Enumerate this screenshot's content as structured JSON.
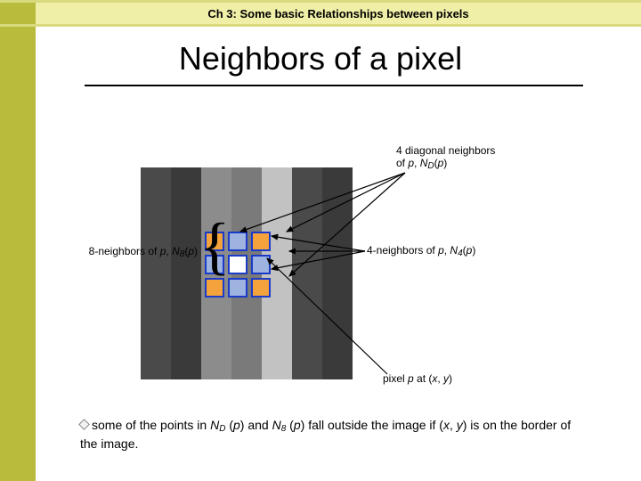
{
  "chapter": "Ch 3: Some basic Relationships between pixels",
  "title": "Neighbors of a pixel",
  "body_parts": {
    "t1": "some of the points in ",
    "nd": "N",
    "dsub": "D",
    "paren_p": " (",
    "p1": "p",
    "close_and": ") and ",
    "n8": "N",
    "sub8": "8",
    "paren_p2": " (",
    "p2": "p",
    "close": ") fall outside the image if (",
    "x": "x",
    "comma": ", ",
    "y": "y",
    "end": ") is on the border of the image."
  },
  "labels": {
    "diag_l1": "4 diagonal neighbors",
    "diag_l2_a": "of ",
    "diag_l2_p": "p",
    "diag_l2_b": ", ",
    "diag_l2_n": "N",
    "diag_l2_d": "D",
    "diag_l2_c": "(",
    "diag_l2_p2": "p",
    "diag_l2_e": ")",
    "n8_a": "8-neighbors of ",
    "n8_p": "p",
    "n8_b": ", ",
    "n8_n": "N",
    "n8_8": "8",
    "n8_c": "(",
    "n8_p2": "p",
    "n8_d": ")",
    "n4_a": "4-neighbors of ",
    "n4_p": "p",
    "n4_b": ", ",
    "n4_n": "N",
    "n4_8": "4",
    "n4_c": "(",
    "n4_p2": "p",
    "n4_d": ")",
    "pp_a": "pixel ",
    "pp_p": "p",
    "pp_b": " at (",
    "pp_x": "x",
    "pp_c": ", ",
    "pp_y": "y",
    "pp_d": ")"
  },
  "colors": {
    "orange": "#f4a23c",
    "blue": "#9fb3e0",
    "grays": [
      "#4a4a4a",
      "#6b6b6b",
      "#8c8c8c",
      "#a8a8a8",
      "#c2c2c2",
      "#d6d6d6",
      "#3a3a3a",
      "#595959",
      "#7a7a7a",
      "#989898"
    ]
  }
}
